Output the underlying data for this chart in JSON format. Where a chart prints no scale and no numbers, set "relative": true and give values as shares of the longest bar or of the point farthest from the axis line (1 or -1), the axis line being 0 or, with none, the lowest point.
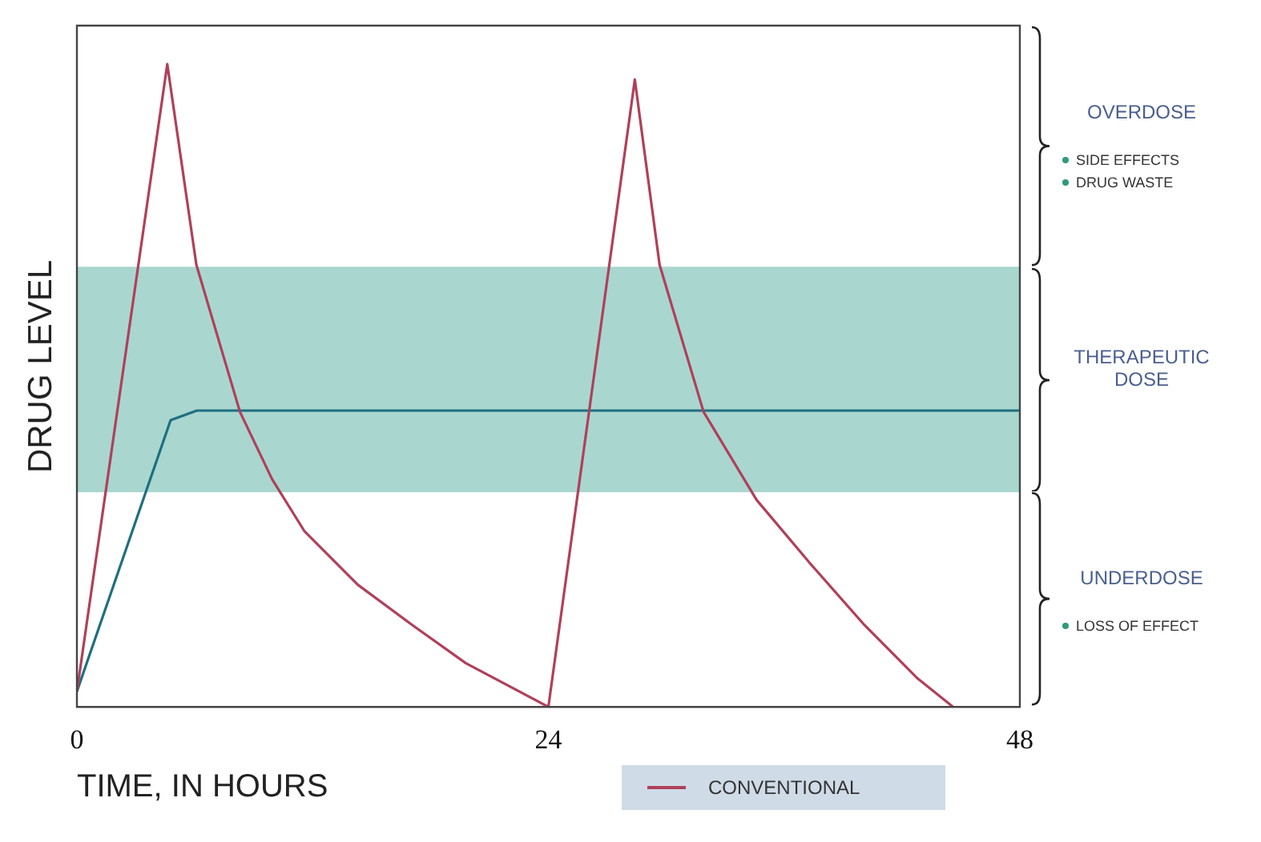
{
  "chart_data": {
    "type": "line",
    "relative": true,
    "xlabel": "TIME, IN HOURS",
    "ylabel": "DRUG LEVEL",
    "xlim": [
      0,
      48
    ],
    "xticks": [
      0,
      24,
      48
    ],
    "grid": false,
    "legend": "bottom",
    "marker": "none",
    "line_style": "solid",
    "series": [
      {
        "name": "CONVENTIONAL",
        "color": "#b0405a",
        "x": [
          0,
          4.6,
          6.08,
          8.3,
          9.94,
          11.59,
          14.3,
          17.09,
          19.8,
          24,
          28.4,
          29.66,
          31.9,
          34.6,
          37.3,
          40.1,
          42.8,
          44.6
        ],
        "values": [
          0.024,
          1,
          0.688,
          0.459,
          0.354,
          0.273,
          0.19,
          0.127,
          0.068,
          0,
          0.976,
          0.688,
          0.459,
          0.322,
          0.224,
          0.127,
          0.044,
          0
        ]
      },
      {
        "color": "#1f6f80",
        "x": [
          0,
          4.77,
          6.1,
          48
        ],
        "values": [
          0.024,
          0.446,
          0.461,
          0.461
        ]
      }
    ],
    "bands": [
      {
        "axis": "y",
        "from": 0.334,
        "to": 0.685,
        "color": "#8cc9c0"
      }
    ],
    "annotations": [
      "OVERDOSE",
      "SIDE EFFECTS",
      "DRUG WASTE",
      "THERAPEUTIC DOSE",
      "UNDERDOSE",
      "LOSS OF EFFECT"
    ]
  }
}
